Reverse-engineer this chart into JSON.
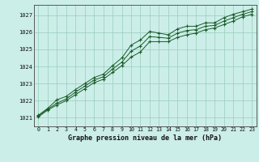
{
  "xlabel": "Graphe pression niveau de la mer (hPa)",
  "background_color": "#cceee8",
  "grid_color": "#99ccbb",
  "line_color": "#1a5c2a",
  "xlim": [
    -0.5,
    23.5
  ],
  "ylim": [
    1020.5,
    1027.6
  ],
  "yticks": [
    1021,
    1022,
    1023,
    1024,
    1025,
    1026,
    1027
  ],
  "xticks": [
    0,
    1,
    2,
    3,
    4,
    5,
    6,
    7,
    8,
    9,
    10,
    11,
    12,
    13,
    14,
    15,
    16,
    17,
    18,
    19,
    20,
    21,
    22,
    23
  ],
  "series1": [
    1021.15,
    1021.55,
    1022.05,
    1022.25,
    1022.65,
    1023.0,
    1023.35,
    1023.55,
    1024.05,
    1024.5,
    1025.25,
    1025.55,
    1026.05,
    1025.95,
    1025.85,
    1026.2,
    1026.35,
    1026.35,
    1026.55,
    1026.55,
    1026.85,
    1027.05,
    1027.2,
    1027.35
  ],
  "series2": [
    1021.1,
    1021.5,
    1021.85,
    1022.1,
    1022.5,
    1022.85,
    1023.2,
    1023.4,
    1023.85,
    1024.25,
    1024.9,
    1025.2,
    1025.75,
    1025.7,
    1025.65,
    1025.95,
    1026.1,
    1026.15,
    1026.35,
    1026.4,
    1026.65,
    1026.85,
    1027.05,
    1027.2
  ],
  "series3": [
    1021.05,
    1021.45,
    1021.75,
    1022.0,
    1022.35,
    1022.7,
    1023.05,
    1023.25,
    1023.65,
    1024.05,
    1024.55,
    1024.85,
    1025.45,
    1025.45,
    1025.45,
    1025.7,
    1025.85,
    1025.95,
    1026.15,
    1026.25,
    1026.45,
    1026.65,
    1026.9,
    1027.05
  ]
}
